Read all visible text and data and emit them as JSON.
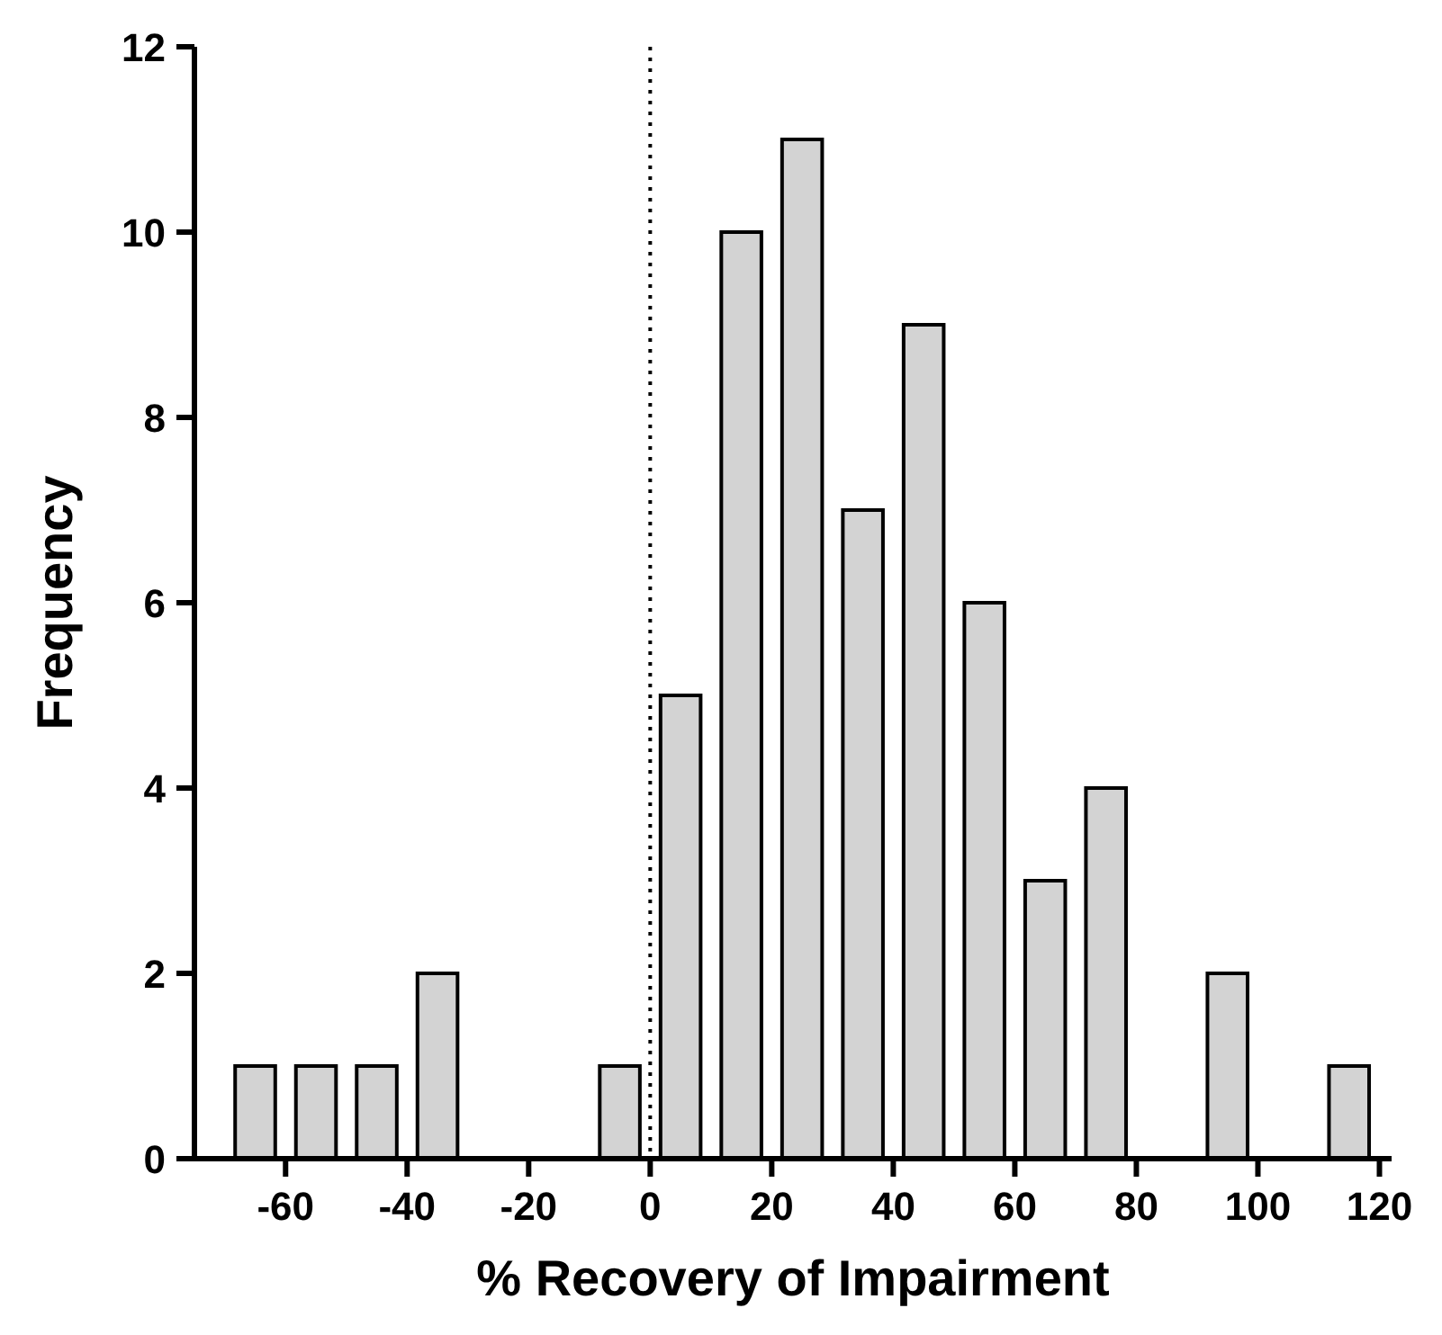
{
  "chart_data": {
    "type": "histogram",
    "xlabel": "% Recovery of Impairment",
    "ylabel": "Frequency",
    "bins": [
      -70,
      -60,
      -50,
      -40,
      -30,
      -20,
      -10,
      0,
      10,
      20,
      30,
      40,
      50,
      60,
      70,
      80,
      90,
      100,
      110,
      120
    ],
    "values": [
      1,
      1,
      1,
      2,
      0,
      0,
      1,
      5,
      10,
      11,
      7,
      9,
      6,
      3,
      4,
      0,
      2,
      0,
      1
    ],
    "color": "#d3d3d3",
    "xlim": [
      -75,
      122
    ],
    "xticks": [
      -60,
      -40,
      -20,
      0,
      20,
      40,
      60,
      80,
      100,
      120
    ],
    "ylim": [
      0,
      12
    ],
    "yticks": [
      0,
      2,
      4,
      6,
      8,
      10,
      12
    ],
    "ref_lines": [
      {
        "axis": "x",
        "value": 0,
        "line_style": "dotted",
        "color": "#000000"
      }
    ],
    "grid": false
  }
}
